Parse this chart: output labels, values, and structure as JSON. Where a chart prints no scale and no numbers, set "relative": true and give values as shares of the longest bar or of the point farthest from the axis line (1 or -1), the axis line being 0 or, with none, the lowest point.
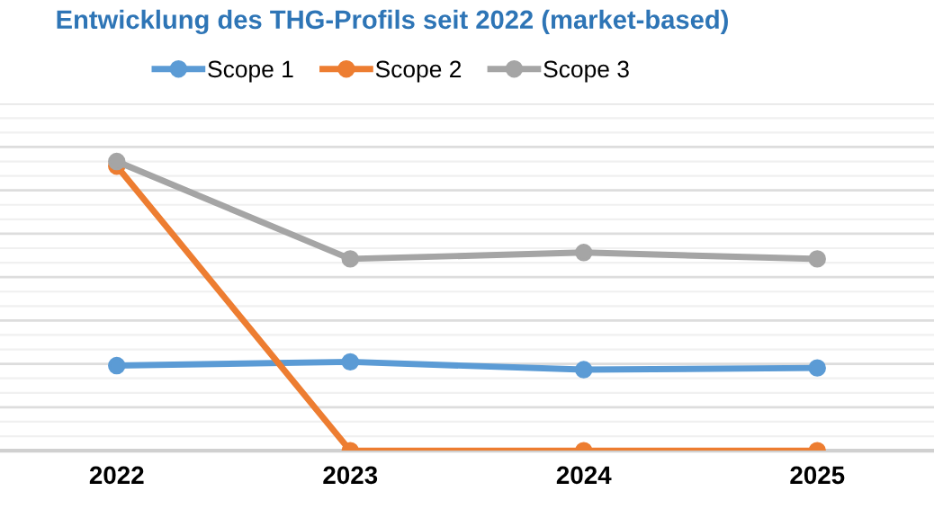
{
  "chart_data": {
    "type": "line",
    "title": "Entwicklung des THG-Profils seit 2022 (market-based)",
    "relative": true,
    "categories": [
      "2022",
      "2023",
      "2024",
      "2025"
    ],
    "series": [
      {
        "name": "Scope 1",
        "color": "#5b9bd5",
        "values": [
          0.294,
          0.307,
          0.28,
          0.286
        ]
      },
      {
        "name": "Scope 2",
        "color": "#ed7d31",
        "values": [
          0.984,
          0,
          0,
          0
        ]
      },
      {
        "name": "Scope 3",
        "color": "#a5a5a5",
        "values": [
          1,
          0.663,
          0.685,
          0.663
        ]
      }
    ],
    "marker": "circle",
    "line_style": "solid",
    "grid": "y",
    "legend": "top"
  }
}
